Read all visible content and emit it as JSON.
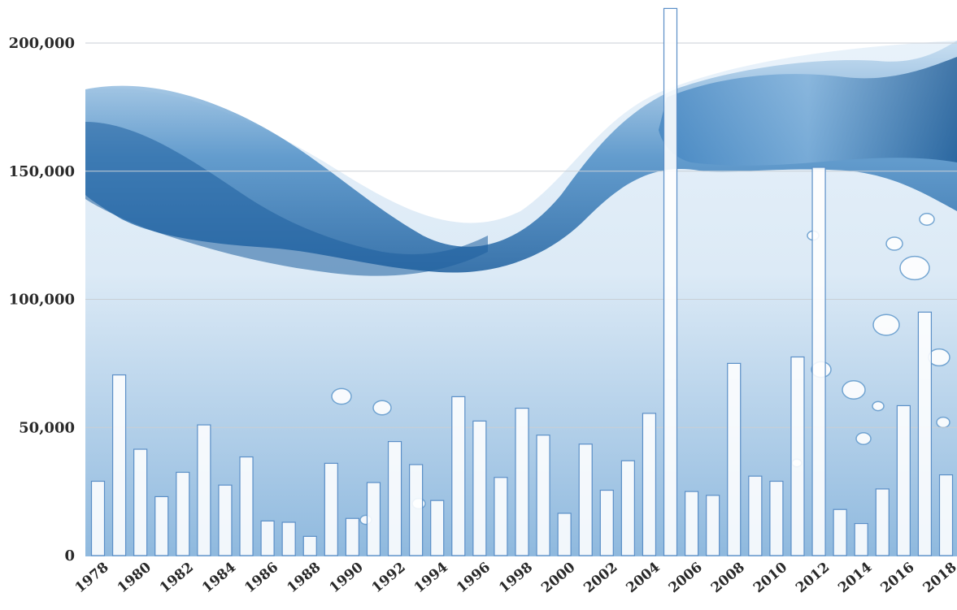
{
  "colors": {
    "bar_fill": "#ffffff",
    "bar_stroke": "#5b8fc7",
    "gridline": "#c9cfd6",
    "water_deep": "#1d5f9e",
    "water_mid": "#4d8ec6",
    "water_light": "#cfe3f3",
    "axis_text": "#2a2a2a"
  },
  "chart_data": {
    "type": "bar",
    "categories": [
      "1978",
      "1979",
      "1980",
      "1981",
      "1982",
      "1983",
      "1984",
      "1985",
      "1986",
      "1987",
      "1988",
      "1989",
      "1990",
      "1991",
      "1992",
      "1993",
      "1994",
      "1995",
      "1996",
      "1997",
      "1998",
      "1999",
      "2000",
      "2001",
      "2002",
      "2003",
      "2004",
      "2005",
      "2006",
      "2007",
      "2008",
      "2009",
      "2010",
      "2011",
      "2012",
      "2013",
      "2014",
      "2015",
      "2016",
      "2017",
      "2018"
    ],
    "x_tick_labels": [
      "1978",
      "",
      "1980",
      "",
      "1982",
      "",
      "1984",
      "",
      "1986",
      "",
      "1988",
      "",
      "1990",
      "",
      "1992",
      "",
      "1994",
      "",
      "1996",
      "",
      "1998",
      "",
      "2000",
      "",
      "2002",
      "",
      "2004",
      "",
      "2006",
      "",
      "2008",
      "",
      "2010",
      "",
      "2012",
      "",
      "2014",
      "",
      "2016",
      "",
      "2018"
    ],
    "values": [
      29000,
      70500,
      41500,
      23000,
      32500,
      51000,
      27500,
      38500,
      13500,
      13000,
      7500,
      36000,
      14500,
      28500,
      44500,
      35500,
      21500,
      62000,
      52500,
      30500,
      57500,
      47000,
      16500,
      43500,
      25500,
      37000,
      55500,
      213500,
      25000,
      23500,
      75000,
      31000,
      29000,
      77500,
      151500,
      18000,
      12500,
      26000,
      58500,
      95000,
      31500
    ],
    "ylim": [
      0,
      210000
    ],
    "y_ticks": [
      0,
      50000,
      100000,
      150000,
      200000
    ],
    "y_tick_labels": [
      "0",
      "50,000",
      "100,000",
      "150,000",
      "200,000"
    ],
    "grid": true,
    "title": "",
    "xlabel": "",
    "ylabel": "",
    "background": "water-splash-photo"
  }
}
